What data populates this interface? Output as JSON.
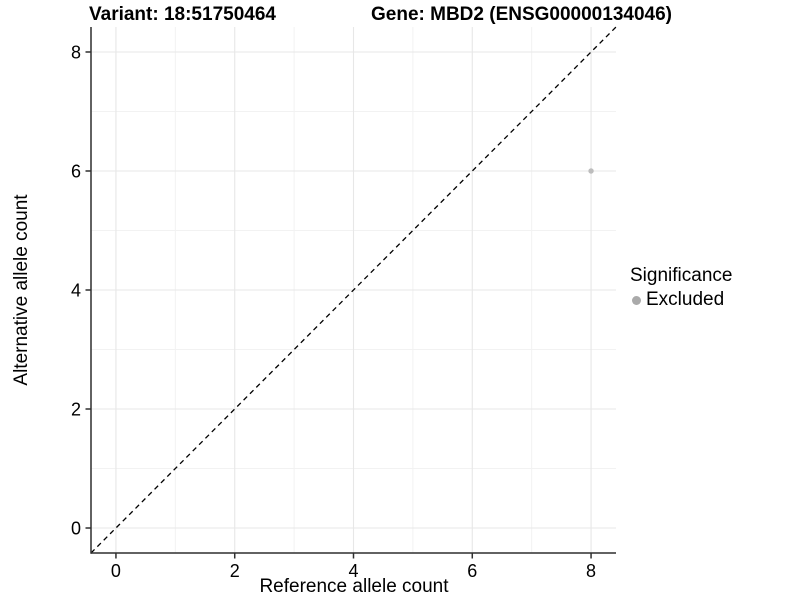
{
  "page": {
    "background": "#ffffff"
  },
  "titles": {
    "variant": "Variant: 18:51750464",
    "gene": "Gene: MBD2 (ENSG00000134046)"
  },
  "chart_data": {
    "type": "scatter",
    "xlabel": "Reference allele count",
    "ylabel": "Alternative allele count",
    "xlim": [
      -0.42,
      8.42
    ],
    "ylim": [
      -0.42,
      8.42
    ],
    "x_major_ticks": [
      0,
      2,
      4,
      6,
      8
    ],
    "y_major_ticks": [
      0,
      2,
      4,
      6,
      8
    ],
    "x_minor_gridlines": [
      1,
      3,
      5,
      7
    ],
    "y_minor_gridlines": [
      1,
      3,
      5,
      7
    ],
    "grid": true,
    "identity_line": {
      "style": "dashed",
      "slope": 1,
      "intercept": 0
    },
    "points": [
      {
        "x": 8,
        "y": 6,
        "significance": "Excluded"
      }
    ],
    "legend": {
      "title": "Significance",
      "position": "right",
      "entries": [
        {
          "label": "Excluded",
          "color": "#aaaaaa",
          "shape": "circle"
        }
      ]
    },
    "colors": {
      "point": "#bdbdbd",
      "identity_line": "#000000",
      "axis_line": "#2f2f2f",
      "major_grid": "#e7e7e7",
      "minor_grid": "#f2f2f2",
      "tick_label": "#000000"
    }
  }
}
